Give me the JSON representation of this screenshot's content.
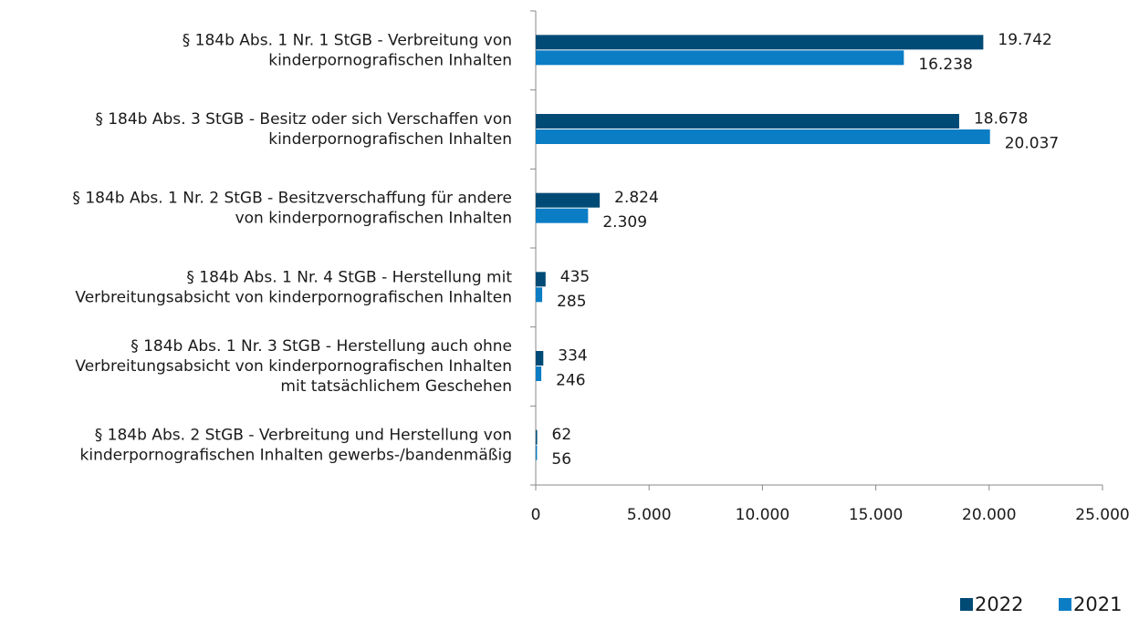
{
  "chart_data": {
    "type": "bar",
    "orientation": "horizontal",
    "categories": [
      [
        "§ 184b Abs. 1 Nr. 1 StGB - Verbreitung von",
        "kinderpornografischen Inhalten"
      ],
      [
        "§ 184b Abs. 3 StGB - Besitz oder sich Verschaffen von",
        "kinderpornografischen Inhalten"
      ],
      [
        "§ 184b Abs. 1 Nr. 2 StGB - Besitzverschaffung für andere",
        "von kinderpornografischen Inhalten"
      ],
      [
        "§ 184b Abs. 1 Nr. 4 StGB - Herstellung mit",
        "Verbreitungsabsicht von kinderpornografischen Inhalten"
      ],
      [
        "§ 184b Abs. 1 Nr. 3 StGB - Herstellung auch ohne",
        "Verbreitungsabsicht von kinderpornografischen Inhalten",
        "mit tatsächlichem Geschehen"
      ],
      [
        "§ 184b Abs. 2 StGB - Verbreitung und Herstellung von",
        "kinderpornografischen Inhalten gewerbs-/bandenmäßig"
      ]
    ],
    "series": [
      {
        "name": "2022",
        "color": "#004b76",
        "values": [
          19742,
          18678,
          2824,
          435,
          334,
          62
        ],
        "value_labels": [
          "19.742",
          "18.678",
          "2.824",
          "435",
          "334",
          "62"
        ]
      },
      {
        "name": "2021",
        "color": "#0b7dc5",
        "values": [
          16238,
          20037,
          2309,
          285,
          246,
          56
        ],
        "value_labels": [
          "16.238",
          "20.037",
          "2.309",
          "285",
          "246",
          "56"
        ]
      }
    ],
    "xlim": [
      0,
      25000
    ],
    "xticks": [
      0,
      {
        "value": 5000,
        "label": "5.000"
      },
      {
        "value": 10000,
        "label": "10.000"
      },
      {
        "value": 15000,
        "label": "15.000"
      },
      {
        "value": 20000,
        "label": "20.000"
      },
      {
        "value": 25000,
        "label": "25.000"
      }
    ],
    "legend": "bottom-right"
  }
}
